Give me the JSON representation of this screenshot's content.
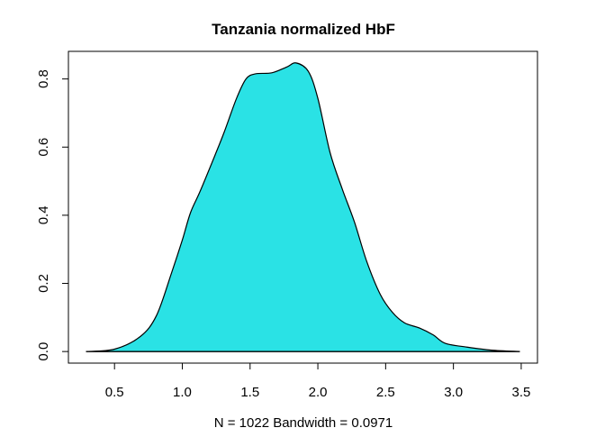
{
  "chart_data": {
    "type": "area",
    "title": "Tanzania normalized HbF",
    "xlabel": "N = 1022   Bandwidth = 0.0971",
    "ylabel": "",
    "xlim": [
      0.16,
      3.62
    ],
    "ylim": [
      -0.034,
      0.881
    ],
    "xticks": [
      "0.5",
      "1.0",
      "1.5",
      "2.0",
      "2.5",
      "3.0",
      "3.5"
    ],
    "yticks": [
      "0.0",
      "0.2",
      "0.4",
      "0.6",
      "0.8"
    ],
    "grid": false,
    "fill_color": "#2AE2E5",
    "line_color": "#000000",
    "x": [
      0.29,
      0.5,
      0.69,
      0.81,
      0.92,
      1.0,
      1.06,
      1.13,
      1.24,
      1.31,
      1.4,
      1.47,
      1.54,
      1.66,
      1.77,
      1.84,
      1.93,
      2.0,
      2.09,
      2.18,
      2.27,
      2.36,
      2.46,
      2.55,
      2.64,
      2.75,
      2.85,
      2.94,
      3.1,
      3.28,
      3.49
    ],
    "y": [
      0.0,
      0.007,
      0.044,
      0.106,
      0.23,
      0.327,
      0.407,
      0.469,
      0.575,
      0.645,
      0.743,
      0.8,
      0.815,
      0.818,
      0.835,
      0.847,
      0.822,
      0.743,
      0.584,
      0.477,
      0.38,
      0.265,
      0.168,
      0.115,
      0.084,
      0.069,
      0.049,
      0.024,
      0.013,
      0.004,
      0.0
    ]
  }
}
